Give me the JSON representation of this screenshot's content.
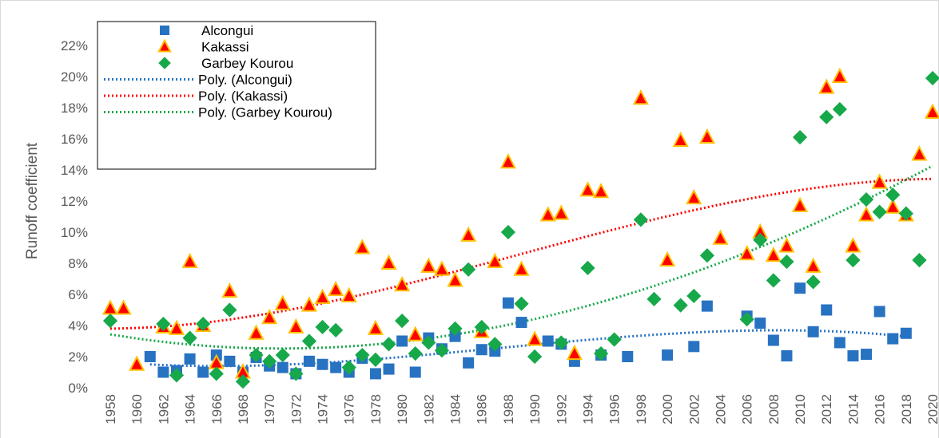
{
  "chart_data": {
    "type": "scatter",
    "y_label": "Runoff coefficient",
    "xlim": [
      1957,
      2020.3
    ],
    "xticks": [
      1958,
      1960,
      1962,
      1964,
      1966,
      1968,
      1970,
      1972,
      1974,
      1976,
      1978,
      1980,
      1982,
      1984,
      1986,
      1988,
      1990,
      1992,
      1994,
      1996,
      1998,
      2000,
      2002,
      2004,
      2006,
      2008,
      2010,
      2012,
      2014,
      2016,
      2018,
      2020
    ],
    "ylim": [
      0,
      24
    ],
    "yticks": [
      {
        "value": 0,
        "label": "0%"
      },
      {
        "value": 2,
        "label": "2%"
      },
      {
        "value": 4,
        "label": "4%"
      },
      {
        "value": 6,
        "label": "6%"
      },
      {
        "value": 8,
        "label": "8%"
      },
      {
        "value": 10,
        "label": "10%"
      },
      {
        "value": 12,
        "label": "12%"
      },
      {
        "value": 14,
        "label": "14%"
      },
      {
        "value": 16,
        "label": "16%"
      },
      {
        "value": 18,
        "label": "18%"
      },
      {
        "value": 20,
        "label": "20%"
      },
      {
        "value": 22,
        "label": "22%"
      }
    ],
    "legend": "top-left",
    "series": [
      {
        "name": "Alcongui",
        "color": "#2872c2",
        "marker": "square",
        "x": [
          1961,
          1962,
          1963,
          1964,
          1965,
          1966,
          1967,
          1968,
          1969,
          1970,
          1971,
          1972,
          1973,
          1974,
          1975,
          1976,
          1977,
          1978,
          1979,
          1980,
          1981,
          1982,
          1983,
          1984,
          1985,
          1986,
          1987,
          1988,
          1989,
          1991,
          1992,
          1993,
          1995,
          1997,
          2000,
          2002,
          2003,
          2006,
          2007,
          2008,
          2009,
          2010,
          2011,
          2012,
          2013,
          2014,
          2015,
          2016,
          2017,
          2018
        ],
        "values": [
          2.0,
          1.0,
          1.1,
          1.85,
          1.0,
          2.1,
          1.7,
          1.0,
          1.95,
          1.4,
          1.3,
          0.9,
          1.7,
          1.5,
          1.3,
          1.0,
          1.9,
          0.9,
          1.2,
          3.0,
          1.0,
          3.2,
          2.5,
          3.3,
          1.6,
          2.45,
          2.35,
          5.45,
          4.2,
          3.0,
          2.8,
          1.7,
          2.1,
          2.0,
          2.1,
          2.65,
          5.25,
          4.6,
          4.15,
          3.05,
          2.05,
          6.4,
          3.6,
          5.0,
          2.9,
          2.05,
          2.15,
          4.9,
          3.15,
          3.5
        ]
      },
      {
        "name": "Kakassi",
        "color": "#ff0000",
        "edge": "#ffc000",
        "marker": "triangle",
        "x": [
          1958,
          1959,
          1960,
          1962,
          1963,
          1964,
          1965,
          1966,
          1967,
          1968,
          1969,
          1970,
          1971,
          1972,
          1973,
          1974,
          1975,
          1976,
          1977,
          1978,
          1979,
          1980,
          1981,
          1982,
          1983,
          1984,
          1985,
          1986,
          1987,
          1988,
          1989,
          1990,
          1991,
          1992,
          1993,
          1994,
          1995,
          1998,
          2000,
          2001,
          2002,
          2003,
          2004,
          2006,
          2007,
          2008,
          2009,
          2010,
          2011,
          2012,
          2013,
          2014,
          2015,
          2016,
          2017,
          2018,
          2019,
          2020
        ],
        "values": [
          5.1,
          5.1,
          1.5,
          3.9,
          3.8,
          8.1,
          4.0,
          1.6,
          6.2,
          1.0,
          3.5,
          4.5,
          5.4,
          3.9,
          5.3,
          5.8,
          6.3,
          5.9,
          9.0,
          3.8,
          8.0,
          6.6,
          3.4,
          7.8,
          7.6,
          6.9,
          9.8,
          3.6,
          8.1,
          14.5,
          7.6,
          3.1,
          11.1,
          11.2,
          2.2,
          12.7,
          12.6,
          18.6,
          8.2,
          15.9,
          12.2,
          16.1,
          9.6,
          8.6,
          10.0,
          8.5,
          9.1,
          11.7,
          7.8,
          19.3,
          20.0,
          9.1,
          11.1,
          13.2,
          11.6,
          11.1,
          15.0,
          17.7
        ]
      },
      {
        "name": "Garbey Kourou",
        "color": "#17a84a",
        "marker": "diamond",
        "x": [
          1958,
          1962,
          1963,
          1964,
          1965,
          1966,
          1967,
          1968,
          1969,
          1970,
          1971,
          1972,
          1973,
          1974,
          1975,
          1976,
          1977,
          1978,
          1979,
          1980,
          1981,
          1982,
          1983,
          1984,
          1985,
          1986,
          1987,
          1988,
          1989,
          1990,
          1992,
          1994,
          1995,
          1996,
          1998,
          1999,
          2001,
          2002,
          2003,
          2006,
          2007,
          2008,
          2009,
          2010,
          2011,
          2012,
          2013,
          2014,
          2015,
          2016,
          2017,
          2018,
          2019,
          2020
        ],
        "values": [
          4.3,
          4.1,
          0.8,
          3.2,
          4.1,
          0.9,
          5.0,
          0.4,
          2.1,
          1.7,
          2.1,
          0.9,
          3.0,
          3.9,
          3.7,
          1.3,
          2.1,
          1.8,
          2.8,
          4.3,
          2.2,
          2.9,
          2.4,
          3.8,
          7.6,
          3.9,
          2.8,
          10.0,
          5.4,
          2.0,
          2.9,
          7.7,
          2.2,
          3.1,
          10.8,
          5.7,
          5.3,
          5.9,
          8.5,
          4.4,
          9.5,
          6.9,
          8.1,
          16.1,
          6.8,
          17.4,
          17.9,
          8.2,
          12.1,
          11.3,
          12.4,
          11.2,
          8.2,
          19.9
        ]
      }
    ],
    "trendlines": [
      {
        "name": "Poly. (Alcongui)",
        "color": "#2872c2"
      },
      {
        "name": "Poly. (Kakassi)",
        "color": "#ff0000"
      },
      {
        "name": "Poly. (Garbey Kourou)",
        "color": "#17a84a"
      }
    ]
  }
}
